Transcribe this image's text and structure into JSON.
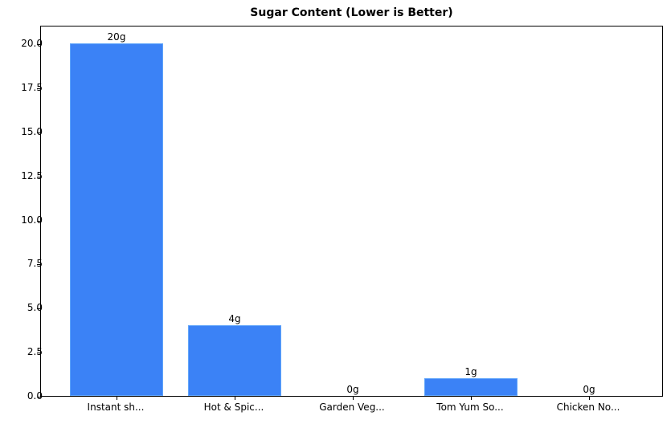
{
  "chart_data": {
    "type": "bar",
    "title": "Sugar Content (Lower is Better)",
    "xlabel": "",
    "ylabel": "",
    "categories": [
      "Instant sh...",
      "Hot & Spic...",
      "Garden Veg...",
      "Tom Yum So...",
      "Chicken No..."
    ],
    "values": [
      20,
      4,
      0,
      1,
      0
    ],
    "value_labels": [
      "20g",
      "4g",
      "0g",
      "1g",
      "0g"
    ],
    "ylim": [
      0,
      21
    ],
    "yticks": [
      "0.0",
      "2.5",
      "5.0",
      "7.5",
      "10.0",
      "12.5",
      "15.0",
      "17.5",
      "20.0"
    ],
    "ytick_values": [
      0,
      2.5,
      5,
      7.5,
      10,
      12.5,
      15,
      17.5,
      20
    ],
    "grid": false,
    "legend": null,
    "bar_color": "#3b82f6"
  }
}
